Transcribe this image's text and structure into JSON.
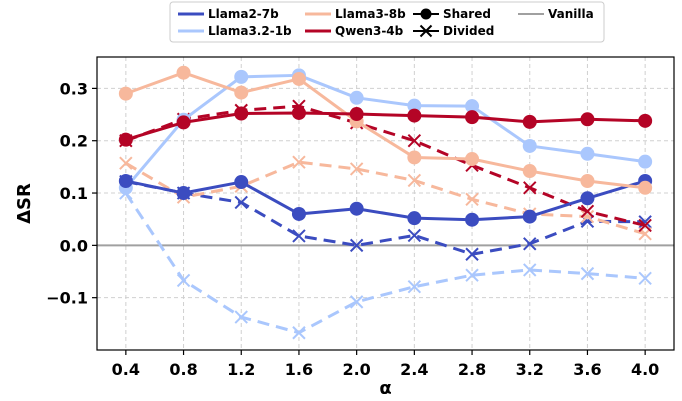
{
  "chart_data": {
    "type": "line",
    "title": "",
    "xlabel": "α",
    "ylabel": "ΔSR",
    "x": [
      0.4,
      0.8,
      1.2,
      1.6,
      2.0,
      2.4,
      2.8,
      3.2,
      3.6,
      4.0
    ],
    "x_tick_labels": [
      "0.4",
      "0.8",
      "1.2",
      "1.6",
      "2.0",
      "2.4",
      "2.8",
      "3.2",
      "3.6",
      "4.0"
    ],
    "y_ticks": [
      -0.1,
      0.0,
      0.1,
      0.2,
      0.3
    ],
    "y_tick_labels": [
      "−0.1",
      "0.0",
      "0.1",
      "0.2",
      "0.3"
    ],
    "xlim": [
      0.2,
      4.2
    ],
    "ylim": [
      -0.2,
      0.36
    ],
    "grid": true,
    "legend_position": "top-center",
    "series": [
      {
        "name": "Llama2-7b Shared",
        "model": "Llama2-7b",
        "mode": "Shared",
        "color": "#3b4cc0",
        "values": [
          0.123,
          0.1,
          0.121,
          0.06,
          0.07,
          0.052,
          0.049,
          0.055,
          0.09,
          0.123
        ]
      },
      {
        "name": "Llama2-7b Divided",
        "model": "Llama2-7b",
        "mode": "Divided",
        "color": "#3b4cc0",
        "values": [
          0.122,
          0.1,
          0.082,
          0.018,
          0.0,
          0.019,
          -0.017,
          0.003,
          0.046,
          0.045
        ]
      },
      {
        "name": "Llama3.2-1b Shared",
        "model": "Llama3.2-1b",
        "mode": "Shared",
        "color": "#aac7fd",
        "values": [
          0.11,
          0.24,
          0.322,
          0.325,
          0.282,
          0.267,
          0.266,
          0.19,
          0.175,
          0.16
        ]
      },
      {
        "name": "Llama3.2-1b Divided",
        "model": "Llama3.2-1b",
        "mode": "Divided",
        "color": "#aac7fd",
        "values": [
          0.1,
          -0.067,
          -0.137,
          -0.167,
          -0.108,
          -0.079,
          -0.057,
          -0.047,
          -0.054,
          -0.063
        ]
      },
      {
        "name": "Llama3-8b Shared",
        "model": "Llama3-8b",
        "mode": "Shared",
        "color": "#f7b89c",
        "values": [
          0.29,
          0.33,
          0.292,
          0.318,
          0.237,
          0.168,
          0.165,
          0.142,
          0.123,
          0.11
        ]
      },
      {
        "name": "Llama3-8b Divided",
        "model": "Llama3-8b",
        "mode": "Divided",
        "color": "#f7b89c",
        "values": [
          0.157,
          0.092,
          0.113,
          0.159,
          0.146,
          0.124,
          0.088,
          0.06,
          0.055,
          0.022
        ]
      },
      {
        "name": "Qwen3-4b Shared",
        "model": "Qwen3-4b",
        "mode": "Shared",
        "color": "#b40426",
        "values": [
          0.202,
          0.235,
          0.252,
          0.253,
          0.251,
          0.248,
          0.245,
          0.236,
          0.241,
          0.238
        ]
      },
      {
        "name": "Qwen3-4b Divided",
        "model": "Qwen3-4b",
        "mode": "Divided",
        "color": "#b40426",
        "values": [
          0.2,
          0.241,
          0.258,
          0.266,
          0.234,
          0.2,
          0.153,
          0.11,
          0.065,
          0.038
        ]
      }
    ],
    "baseline": {
      "name": "Vanilla",
      "value": 0.0,
      "color": "#a0a0a0"
    },
    "legend": {
      "models": [
        {
          "label": "Llama2-7b",
          "color": "#3b4cc0"
        },
        {
          "label": "Llama3.2-1b",
          "color": "#aac7fd"
        },
        {
          "label": "Llama3-8b",
          "color": "#f7b89c"
        },
        {
          "label": "Qwen3-4b",
          "color": "#b40426"
        }
      ],
      "markers": [
        {
          "label": "Shared",
          "symbol": "circle",
          "color": "#000000"
        },
        {
          "label": "Divided",
          "symbol": "x",
          "color": "#000000"
        }
      ],
      "vanilla": {
        "label": "Vanilla",
        "color": "#a0a0a0"
      }
    }
  }
}
